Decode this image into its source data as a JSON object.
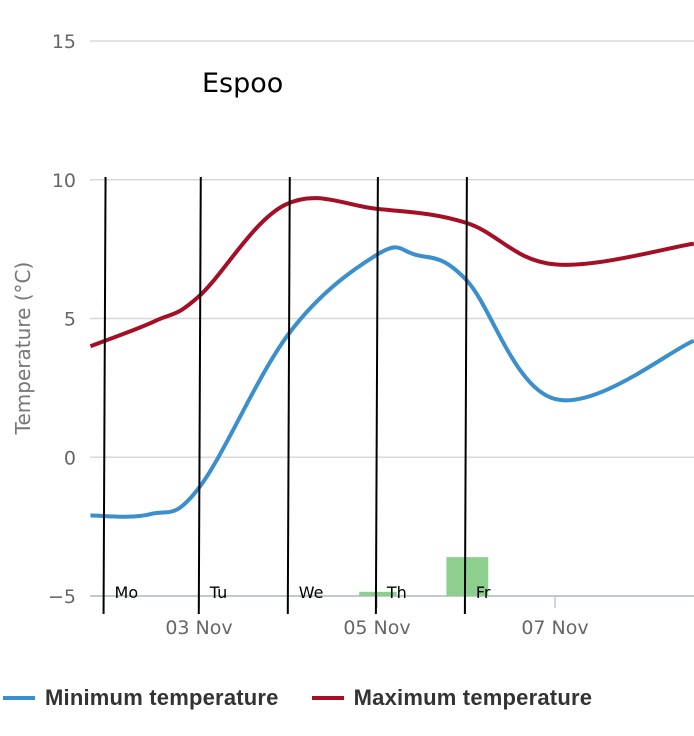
{
  "chart_data": {
    "type": "line",
    "title": "Espoo",
    "xlabel": "",
    "ylabel": "Temperature (°C)",
    "ylim": [
      -5,
      15
    ],
    "yticks": [
      -5,
      0,
      5,
      10,
      15
    ],
    "ytick_labels": [
      "−5",
      "0",
      "5",
      "10",
      "15"
    ],
    "x_unit": "days relative to 03 Nov 00:00",
    "xlim": [
      -1.22,
      5.56
    ],
    "xticks": [
      0,
      2,
      4
    ],
    "xtick_labels": [
      "03 Nov",
      "05 Nov",
      "07 Nov"
    ],
    "grid": true,
    "legend_position": "bottom",
    "series": [
      {
        "name": "Minimum temperature",
        "color": "#3a8fcc",
        "x": [
          -1.22,
          -0.55,
          0.0,
          1.02,
          2.0,
          2.43,
          3.0,
          4.0,
          5.56
        ],
        "values": [
          -2.1,
          -2.05,
          -1.1,
          4.5,
          7.3,
          7.3,
          6.4,
          2.1,
          4.2
        ]
      },
      {
        "name": "Maximum temperature",
        "color": "#a50f26",
        "x": [
          -1.22,
          -0.5,
          0.0,
          0.97,
          2.0,
          3.0,
          4.0,
          5.56
        ],
        "values": [
          4.0,
          4.9,
          5.8,
          9.1,
          8.95,
          8.45,
          6.95,
          7.7
        ]
      }
    ],
    "bars": {
      "name": "Precipitation",
      "color": "#8dcf8f",
      "baseline": -5,
      "items": [
        {
          "x_start": 1.8,
          "x_end": 2.22,
          "top": -4.85
        },
        {
          "x_start": 2.78,
          "x_end": 3.25,
          "top": -3.6
        }
      ]
    },
    "day_markers": [
      {
        "label": "Mo",
        "x": -1.05
      },
      {
        "label": "Tu",
        "x": 0.02
      },
      {
        "label": "We",
        "x": 1.02
      },
      {
        "label": "Th",
        "x": 2.01
      },
      {
        "label": "Fr",
        "x": 3.01
      }
    ]
  },
  "legend": {
    "items": [
      {
        "label": "Minimum temperature",
        "color": "#3a8fcc"
      },
      {
        "label": "Maximum temperature",
        "color": "#a50f26"
      }
    ]
  }
}
